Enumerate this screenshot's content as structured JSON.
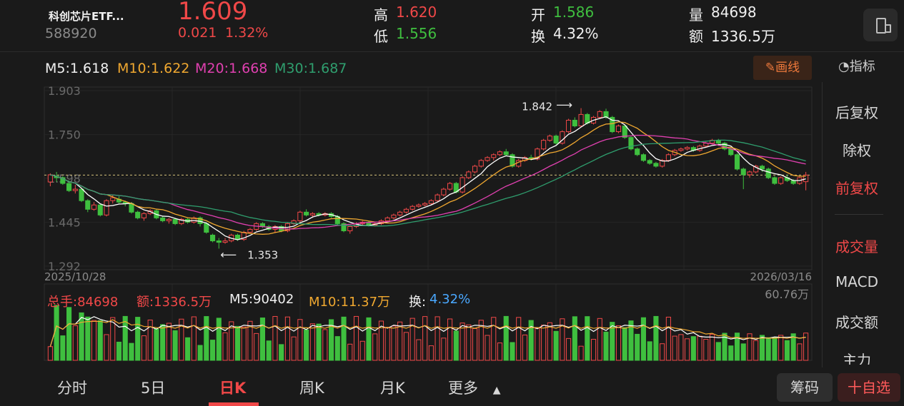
{
  "header": {
    "name": "科创芯片ETF...",
    "code": "588920",
    "price": "1.609",
    "change": "0.021",
    "change_pct": "1.32%",
    "high_label": "高",
    "high": "1.620",
    "low_label": "低",
    "low": "1.556",
    "open_label": "开",
    "open": "1.586",
    "turnover_label": "换",
    "turnover": "4.32%",
    "vol_label": "量",
    "vol": "84698",
    "amount_label": "额",
    "amount": "1336.5万"
  },
  "ma_legend": {
    "m5": "M5:1.618",
    "m10": "M10:1.622",
    "m20": "M20:1.668",
    "m30": "M30:1.687"
  },
  "draw_button": "画线",
  "indicator_label": "指标",
  "right_menu": [
    "后复权",
    "除权",
    "前复权",
    "成交量",
    "MACD",
    "成交额",
    "主力"
  ],
  "vol_legend": {
    "total": "总手:84698",
    "amount": "额:1336.5万",
    "m5": "M5:90402",
    "m10": "M10:11.37万",
    "turn_label": "换:",
    "turn_value": "4.32%"
  },
  "bottom_tabs": [
    "分时",
    "5日",
    "日K",
    "周K",
    "月K",
    "更多"
  ],
  "chip_button": "筹码",
  "watch_button": "十自选",
  "colors": {
    "up": "#f04848",
    "down": "#3fbf3f",
    "m5": "#ffffff",
    "m10": "#f0a830",
    "m20": "#e040b0",
    "m30": "#2f9e6e"
  },
  "chart_data": {
    "type": "candlestick",
    "x_start": "2025/10/28",
    "x_end": "2026/03/16",
    "y_ticks": [
      "1.903",
      "1.750",
      "1.598",
      "1.445",
      "1.292"
    ],
    "ylim": [
      1.292,
      1.903
    ],
    "high_annotation": "1.842",
    "low_annotation": "1.353",
    "candles": [
      [
        1.585,
        1.61,
        1.57,
        1.615
      ],
      [
        1.605,
        1.6,
        1.585,
        1.62
      ],
      [
        1.6,
        1.58,
        1.575,
        1.605
      ],
      [
        1.58,
        1.555,
        1.55,
        1.59
      ],
      [
        1.555,
        1.56,
        1.545,
        1.575
      ],
      [
        1.56,
        1.52,
        1.515,
        1.565
      ],
      [
        1.52,
        1.49,
        1.48,
        1.525
      ],
      [
        1.49,
        1.505,
        1.485,
        1.515
      ],
      [
        1.505,
        1.47,
        1.465,
        1.51
      ],
      [
        1.47,
        1.52,
        1.465,
        1.525
      ],
      [
        1.52,
        1.53,
        1.51,
        1.54
      ],
      [
        1.525,
        1.515,
        1.51,
        1.535
      ],
      [
        1.515,
        1.51,
        1.5,
        1.52
      ],
      [
        1.51,
        1.48,
        1.475,
        1.515
      ],
      [
        1.48,
        1.46,
        1.455,
        1.485
      ],
      [
        1.46,
        1.475,
        1.45,
        1.48
      ],
      [
        1.475,
        1.485,
        1.47,
        1.49
      ],
      [
        1.485,
        1.46,
        1.455,
        1.49
      ],
      [
        1.46,
        1.45,
        1.445,
        1.465
      ],
      [
        1.45,
        1.455,
        1.44,
        1.46
      ],
      [
        1.455,
        1.44,
        1.435,
        1.46
      ],
      [
        1.44,
        1.455,
        1.435,
        1.46
      ],
      [
        1.455,
        1.445,
        1.44,
        1.46
      ],
      [
        1.445,
        1.46,
        1.44,
        1.465
      ],
      [
        1.46,
        1.44,
        1.43,
        1.465
      ],
      [
        1.44,
        1.41,
        1.405,
        1.445
      ],
      [
        1.4,
        1.38,
        1.375,
        1.405
      ],
      [
        1.38,
        1.375,
        1.353,
        1.39
      ],
      [
        1.375,
        1.38,
        1.37,
        1.39
      ],
      [
        1.38,
        1.4,
        1.375,
        1.405
      ],
      [
        1.4,
        1.385,
        1.38,
        1.405
      ],
      [
        1.385,
        1.41,
        1.38,
        1.415
      ],
      [
        1.41,
        1.42,
        1.405,
        1.425
      ],
      [
        1.42,
        1.44,
        1.415,
        1.445
      ],
      [
        1.44,
        1.43,
        1.425,
        1.445
      ],
      [
        1.43,
        1.42,
        1.415,
        1.435
      ],
      [
        1.42,
        1.43,
        1.41,
        1.435
      ],
      [
        1.43,
        1.415,
        1.41,
        1.435
      ],
      [
        1.415,
        1.44,
        1.41,
        1.445
      ],
      [
        1.44,
        1.45,
        1.435,
        1.455
      ],
      [
        1.45,
        1.48,
        1.445,
        1.485
      ],
      [
        1.48,
        1.47,
        1.465,
        1.49
      ],
      [
        1.47,
        1.475,
        1.46,
        1.48
      ],
      [
        1.475,
        1.47,
        1.465,
        1.48
      ],
      [
        1.47,
        1.475,
        1.465,
        1.48
      ],
      [
        1.475,
        1.465,
        1.46,
        1.48
      ],
      [
        1.465,
        1.44,
        1.435,
        1.47
      ],
      [
        1.44,
        1.415,
        1.41,
        1.445
      ],
      [
        1.415,
        1.43,
        1.405,
        1.435
      ],
      [
        1.43,
        1.44,
        1.425,
        1.445
      ],
      [
        1.44,
        1.445,
        1.435,
        1.45
      ],
      [
        1.445,
        1.435,
        1.43,
        1.45
      ],
      [
        1.435,
        1.44,
        1.43,
        1.445
      ],
      [
        1.44,
        1.45,
        1.435,
        1.455
      ],
      [
        1.45,
        1.46,
        1.445,
        1.465
      ],
      [
        1.46,
        1.47,
        1.455,
        1.475
      ],
      [
        1.47,
        1.48,
        1.465,
        1.485
      ],
      [
        1.48,
        1.49,
        1.475,
        1.495
      ],
      [
        1.49,
        1.5,
        1.485,
        1.505
      ],
      [
        1.5,
        1.505,
        1.495,
        1.51
      ],
      [
        1.505,
        1.51,
        1.5,
        1.515
      ],
      [
        1.51,
        1.52,
        1.505,
        1.525
      ],
      [
        1.52,
        1.54,
        1.515,
        1.545
      ],
      [
        1.54,
        1.56,
        1.535,
        1.565
      ],
      [
        1.56,
        1.58,
        1.555,
        1.585
      ],
      [
        1.58,
        1.55,
        1.545,
        1.585
      ],
      [
        1.55,
        1.6,
        1.545,
        1.605
      ],
      [
        1.6,
        1.62,
        1.595,
        1.625
      ],
      [
        1.62,
        1.64,
        1.615,
        1.645
      ],
      [
        1.64,
        1.66,
        1.635,
        1.665
      ],
      [
        1.66,
        1.67,
        1.655,
        1.675
      ],
      [
        1.67,
        1.68,
        1.66,
        1.685
      ],
      [
        1.68,
        1.69,
        1.675,
        1.695
      ],
      [
        1.69,
        1.68,
        1.675,
        1.7
      ],
      [
        1.68,
        1.64,
        1.635,
        1.685
      ],
      [
        1.64,
        1.66,
        1.635,
        1.665
      ],
      [
        1.66,
        1.67,
        1.655,
        1.675
      ],
      [
        1.67,
        1.665,
        1.66,
        1.68
      ],
      [
        1.665,
        1.7,
        1.66,
        1.705
      ],
      [
        1.7,
        1.73,
        1.695,
        1.735
      ],
      [
        1.73,
        1.745,
        1.725,
        1.75
      ],
      [
        1.745,
        1.72,
        1.715,
        1.75
      ],
      [
        1.72,
        1.76,
        1.715,
        1.765
      ],
      [
        1.76,
        1.8,
        1.755,
        1.805
      ],
      [
        1.8,
        1.78,
        1.775,
        1.81
      ],
      [
        1.78,
        1.82,
        1.775,
        1.842
      ],
      [
        1.82,
        1.79,
        1.785,
        1.825
      ],
      [
        1.79,
        1.81,
        1.785,
        1.815
      ],
      [
        1.81,
        1.83,
        1.805,
        1.835
      ],
      [
        1.83,
        1.81,
        1.805,
        1.84
      ],
      [
        1.81,
        1.76,
        1.755,
        1.815
      ],
      [
        1.76,
        1.78,
        1.755,
        1.785
      ],
      [
        1.78,
        1.74,
        1.735,
        1.785
      ],
      [
        1.74,
        1.7,
        1.695,
        1.745
      ],
      [
        1.7,
        1.68,
        1.675,
        1.705
      ],
      [
        1.68,
        1.66,
        1.655,
        1.685
      ],
      [
        1.66,
        1.65,
        1.645,
        1.665
      ],
      [
        1.65,
        1.64,
        1.635,
        1.655
      ],
      [
        1.64,
        1.66,
        1.635,
        1.665
      ],
      [
        1.66,
        1.68,
        1.655,
        1.685
      ],
      [
        1.68,
        1.695,
        1.675,
        1.7
      ],
      [
        1.695,
        1.7,
        1.69,
        1.705
      ],
      [
        1.7,
        1.705,
        1.695,
        1.71
      ],
      [
        1.705,
        1.695,
        1.69,
        1.71
      ],
      [
        1.695,
        1.71,
        1.69,
        1.715
      ],
      [
        1.71,
        1.72,
        1.705,
        1.725
      ],
      [
        1.72,
        1.73,
        1.715,
        1.735
      ],
      [
        1.73,
        1.72,
        1.71,
        1.735
      ],
      [
        1.72,
        1.7,
        1.695,
        1.725
      ],
      [
        1.7,
        1.68,
        1.675,
        1.705
      ],
      [
        1.68,
        1.63,
        1.625,
        1.685
      ],
      [
        1.63,
        1.61,
        1.56,
        1.635
      ],
      [
        1.61,
        1.62,
        1.6,
        1.625
      ],
      [
        1.62,
        1.64,
        1.615,
        1.645
      ],
      [
        1.64,
        1.63,
        1.62,
        1.645
      ],
      [
        1.63,
        1.6,
        1.595,
        1.635
      ],
      [
        1.6,
        1.58,
        1.575,
        1.605
      ],
      [
        1.58,
        1.6,
        1.575,
        1.605
      ],
      [
        1.6,
        1.59,
        1.585,
        1.61
      ],
      [
        1.59,
        1.58,
        1.575,
        1.595
      ],
      [
        1.58,
        1.6,
        1.575,
        1.605
      ],
      [
        1.586,
        1.609,
        1.556,
        1.62
      ]
    ],
    "volume_max_label": "60.76万"
  }
}
